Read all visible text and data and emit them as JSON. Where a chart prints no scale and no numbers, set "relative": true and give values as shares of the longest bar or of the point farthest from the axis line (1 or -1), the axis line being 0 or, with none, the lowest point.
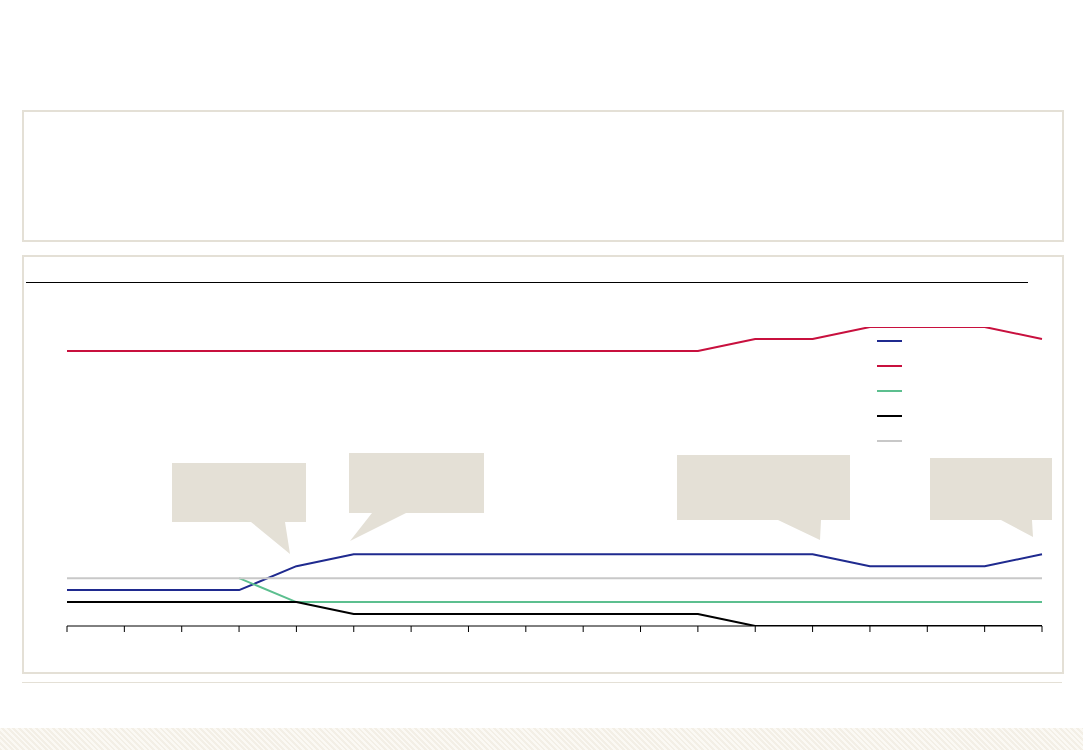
{
  "chart_data": {
    "type": "line",
    "relative": true,
    "categories": [
      null,
      null,
      null,
      null,
      null,
      null,
      null,
      null,
      null,
      null,
      null,
      null,
      null,
      null,
      null,
      null,
      null,
      null
    ],
    "series": [
      {
        "color": "#1f2a8f",
        "values": [
          0.12,
          0.12,
          0.12,
          0.12,
          0.2,
          0.24,
          0.24,
          0.24,
          0.24,
          0.24,
          0.24,
          0.24,
          0.24,
          0.24,
          0.2,
          0.2,
          0.2,
          0.24
        ]
      },
      {
        "color": "#c8103e",
        "values": [
          0.92,
          0.92,
          0.92,
          0.92,
          0.92,
          0.92,
          0.92,
          0.92,
          0.92,
          0.92,
          0.92,
          0.92,
          0.96,
          0.96,
          1,
          1,
          1,
          0.96
        ]
      },
      {
        "color": "#5cbf8f",
        "values": [
          null,
          null,
          null,
          0.16,
          0.08,
          0.08,
          0.08,
          0.08,
          0.08,
          0.08,
          0.08,
          0.08,
          0.08,
          0.08,
          0.08,
          0.08,
          0.08,
          0.08
        ]
      },
      {
        "color": "#000000",
        "values": [
          0.08,
          0.08,
          0.08,
          0.08,
          0.08,
          0.04,
          0.04,
          0.04,
          0.04,
          0.04,
          0.04,
          0.04,
          0,
          0,
          0,
          0,
          0,
          0
        ]
      },
      {
        "color": "#c8c8c8",
        "values": [
          0.16,
          0.16,
          0.16,
          0.16,
          0.16,
          0.16,
          0.16,
          0.16,
          0.16,
          0.16,
          0.16,
          0.16,
          0.16,
          0.16,
          0.16,
          0.16,
          0.16,
          0.16
        ]
      }
    ],
    "marker": "none",
    "line_style": "solid",
    "grid": false
  }
}
